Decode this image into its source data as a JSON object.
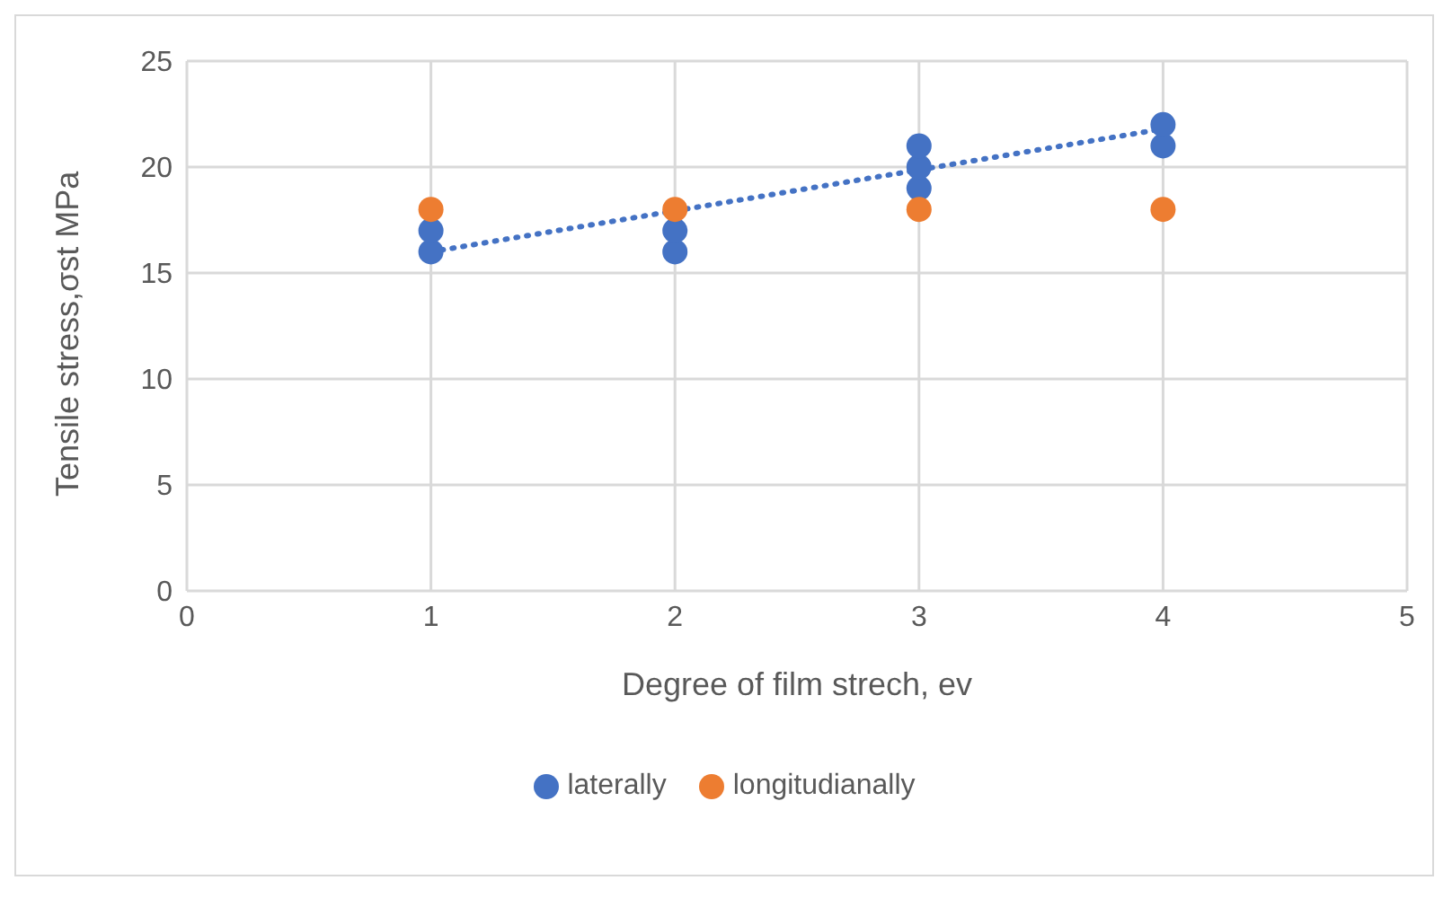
{
  "chart_data": {
    "type": "scatter",
    "xlabel": "Degree of film strech, ev",
    "ylabel": "Tensile stress,σst MPa",
    "xlim": [
      0,
      5
    ],
    "xticks": [
      0,
      1,
      2,
      3,
      4,
      5
    ],
    "ylim": [
      0,
      25
    ],
    "yticks": [
      0,
      5,
      10,
      15,
      20,
      25
    ],
    "grid": true,
    "legend": "bottom",
    "marker": "circle",
    "series": [
      {
        "name": "laterally",
        "color": "#4472c4",
        "x": [
          1,
          1,
          2,
          2,
          3,
          3,
          3,
          4,
          4
        ],
        "values": [
          16,
          17,
          16,
          17,
          19,
          20,
          21,
          21,
          22
        ]
      },
      {
        "name": "longitudianally",
        "color": "#ed7d31",
        "x": [
          1,
          2,
          3,
          4
        ],
        "values": [
          18,
          18,
          18,
          18
        ]
      },
      {
        "type": "line",
        "color": "#4472c4",
        "line_style": "dotted",
        "marker": "none",
        "x": [
          1,
          4
        ],
        "values": [
          16,
          21.8
        ]
      }
    ]
  }
}
